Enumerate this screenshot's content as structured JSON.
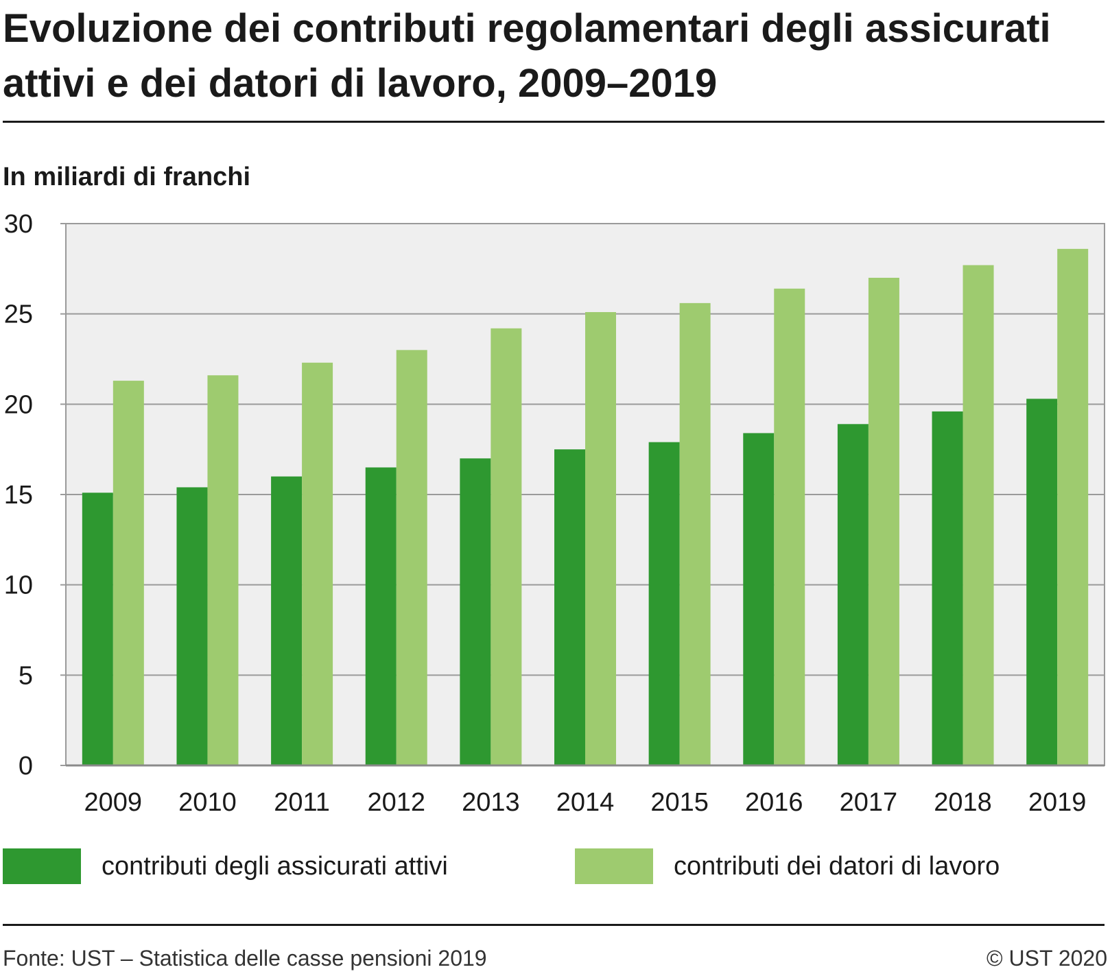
{
  "title": "Evoluzione dei contributi regolamentari degli assicurati attivi e dei datori di lavoro, 2009–2019",
  "unit_label": "In miliardi di franchi",
  "source": "Fonte: UST – Statistica delle casse pensioni 2019",
  "copyright": "© UST 2020",
  "colors": {
    "series_1": "#2e9830",
    "series_2": "#9ecb6f",
    "plot_background": "#efefef",
    "gridline": "#9a9a9a"
  },
  "chart_data": {
    "type": "bar",
    "categories": [
      "2009",
      "2010",
      "2011",
      "2012",
      "2013",
      "2014",
      "2015",
      "2016",
      "2017",
      "2018",
      "2019"
    ],
    "series": [
      {
        "name": "contributi degli assicurati attivi",
        "values": [
          15.1,
          15.4,
          16.0,
          16.5,
          17.0,
          17.5,
          17.9,
          18.4,
          18.9,
          19.6,
          20.3
        ]
      },
      {
        "name": "contributi dei datori di lavoro",
        "values": [
          21.3,
          21.6,
          22.3,
          23.0,
          24.2,
          25.1,
          25.6,
          26.4,
          27.0,
          27.7,
          28.6
        ]
      }
    ],
    "ylim": [
      0,
      30
    ],
    "yticks": [
      "0",
      "5",
      "10",
      "15",
      "20",
      "25",
      "30"
    ],
    "grid": true,
    "legend_position": "bottom"
  }
}
